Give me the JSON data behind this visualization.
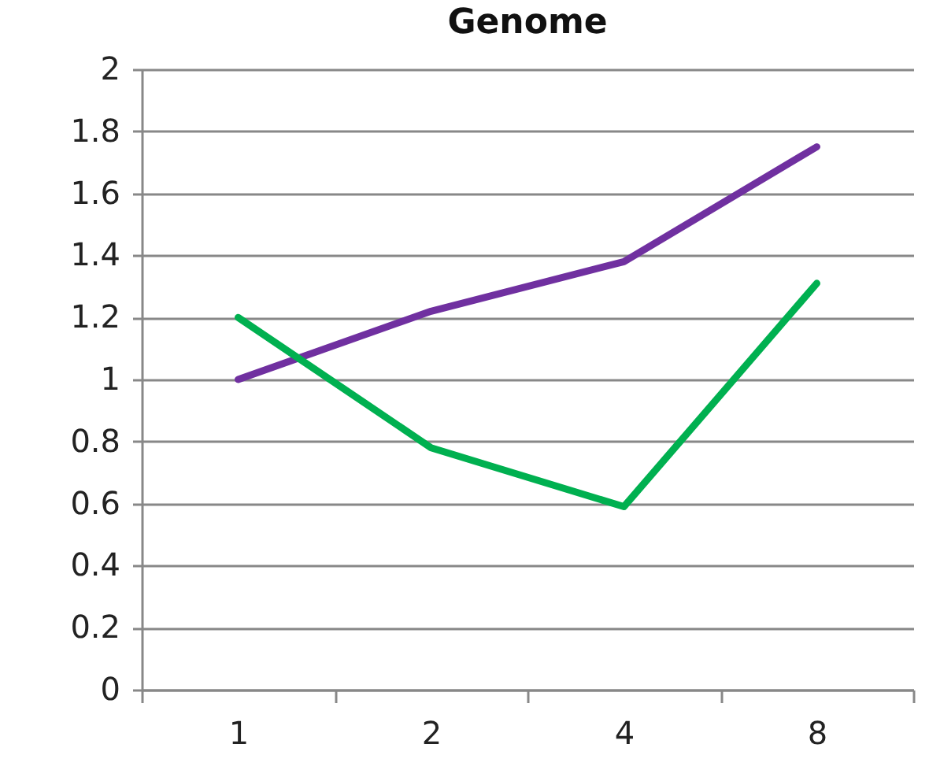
{
  "chart_data": {
    "type": "line",
    "title": "Genome",
    "categories": [
      "1",
      "2",
      "4",
      "8"
    ],
    "series": [
      {
        "color": "#7030a0",
        "values": [
          1.0,
          1.22,
          1.38,
          1.75
        ]
      },
      {
        "color": "#00b050",
        "values": [
          1.2,
          0.78,
          0.59,
          1.31
        ]
      }
    ],
    "ylim": [
      0,
      2
    ],
    "yticks": [
      0,
      0.2,
      0.4,
      0.6,
      0.8,
      1,
      1.2,
      1.4,
      1.6,
      1.8,
      2
    ],
    "grid": "y",
    "legend": false,
    "marker": "none",
    "line_style": "solid"
  }
}
